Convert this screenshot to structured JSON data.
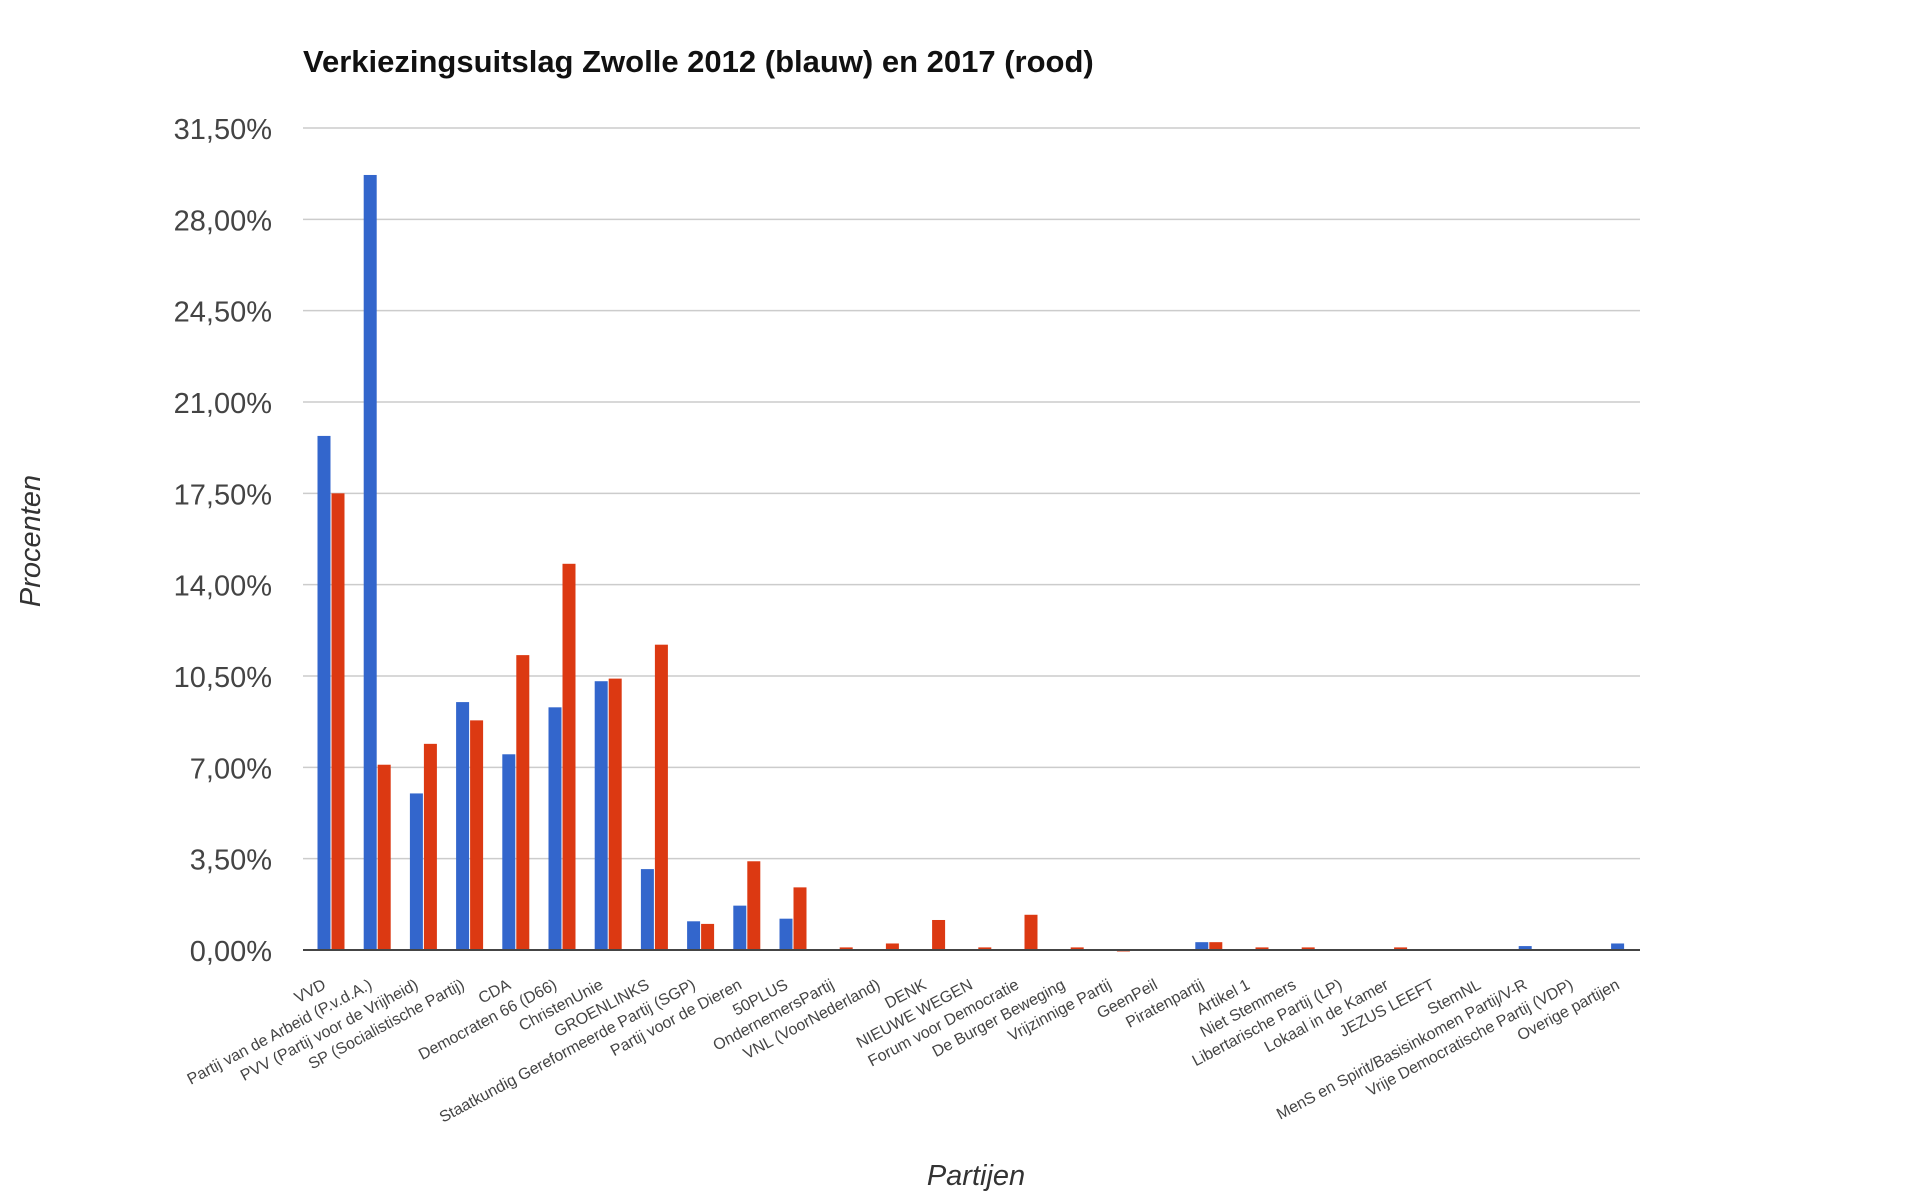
{
  "chart_data": {
    "type": "bar",
    "title": "Verkiezingsuitslag Zwolle 2012 (blauw) en 2017 (rood)",
    "xlabel": "Partijen",
    "ylabel": "Procenten",
    "ylim": [
      0,
      31.5
    ],
    "yticks": [
      "0,00%",
      "3,50%",
      "7,00%",
      "10,50%",
      "14,00%",
      "17,50%",
      "21,00%",
      "24,50%",
      "28,00%",
      "31,50%"
    ],
    "grid": true,
    "legend": "none",
    "colors": {
      "s2012": "#3366cc",
      "s2017": "#dc3912",
      "grid": "#cccccc",
      "axis": "#444444"
    },
    "categories": [
      "VVD",
      "Partij van de Arbeid (P.v.d.A.)",
      "PVV (Partij voor de Vrijheid)",
      "SP (Socialistische Partij)",
      "CDA",
      "Democraten 66 (D66)",
      "ChristenUnie",
      "GROENLINKS",
      "Staatkundig Gereformeerde Partij (SGP)",
      "Partij voor de Dieren",
      "50PLUS",
      "OndernemersPartij",
      "VNL (VoorNederland)",
      "DENK",
      "NIEUWE WEGEN",
      "Forum voor Democratie",
      "De Burger Beweging",
      "Vrijzinnige Partij",
      "GeenPeil",
      "Piratenpartij",
      "Artikel 1",
      "Niet Stemmers",
      "Libertarische Partij (LP)",
      "Lokaal in de Kamer",
      "JEZUS LEEFT",
      "StemNL",
      "MenS en Spirit/Basisinkomen Partij/V-R",
      "Vrije Democratische Partij (VDP)",
      "Overige partijen"
    ],
    "series": [
      {
        "values": [
          19.7,
          29.7,
          6.0,
          9.5,
          7.5,
          9.3,
          10.3,
          3.1,
          1.1,
          1.7,
          1.2,
          0.0,
          0.0,
          0.0,
          0.0,
          0.0,
          0.0,
          0.0,
          0.0,
          0.3,
          0.0,
          0.0,
          0.0,
          0.0,
          0.0,
          0.0,
          0.15,
          0.0,
          0.25
        ]
      },
      {
        "values": [
          17.5,
          7.1,
          7.9,
          8.8,
          11.3,
          14.8,
          10.4,
          11.7,
          1.0,
          3.4,
          2.4,
          0.1,
          0.25,
          1.15,
          0.1,
          1.35,
          0.1,
          0.02,
          0.0,
          0.3,
          0.1,
          0.1,
          0.0,
          0.1,
          0.0,
          0.0,
          0.0,
          0.0,
          0.0
        ]
      }
    ]
  }
}
